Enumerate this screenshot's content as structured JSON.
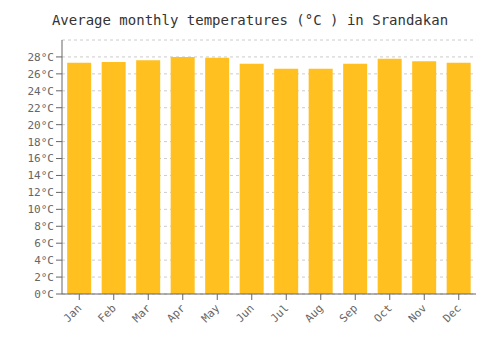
{
  "chart_data": {
    "type": "bar",
    "title": "Average monthly temperatures (°C ) in Srandakan",
    "categories": [
      "Jan",
      "Feb",
      "Mar",
      "Apr",
      "May",
      "Jun",
      "Jul",
      "Aug",
      "Sep",
      "Oct",
      "Nov",
      "Dec"
    ],
    "values": [
      27.3,
      27.4,
      27.6,
      28.0,
      27.9,
      27.2,
      26.6,
      26.6,
      27.2,
      27.8,
      27.5,
      27.3
    ],
    "color": "#FFC020",
    "ylim": [
      0,
      30
    ],
    "yticks": [
      {
        "value": 0,
        "label": "0°C"
      },
      {
        "value": 2,
        "label": "2°C"
      },
      {
        "value": 4,
        "label": "4°C"
      },
      {
        "value": 6,
        "label": "6°C"
      },
      {
        "value": 8,
        "label": "8°C"
      },
      {
        "value": 10,
        "label": "10°C"
      },
      {
        "value": 12,
        "label": "12°C"
      },
      {
        "value": 14,
        "label": "14°C"
      },
      {
        "value": 16,
        "label": "16°C"
      },
      {
        "value": 18,
        "label": "18°C"
      },
      {
        "value": 20,
        "label": "20°C"
      },
      {
        "value": 22,
        "label": "22°C"
      },
      {
        "value": 24,
        "label": "24°C"
      },
      {
        "value": 26,
        "label": "26°C"
      },
      {
        "value": 28,
        "label": "28°C"
      }
    ],
    "grid": true
  }
}
